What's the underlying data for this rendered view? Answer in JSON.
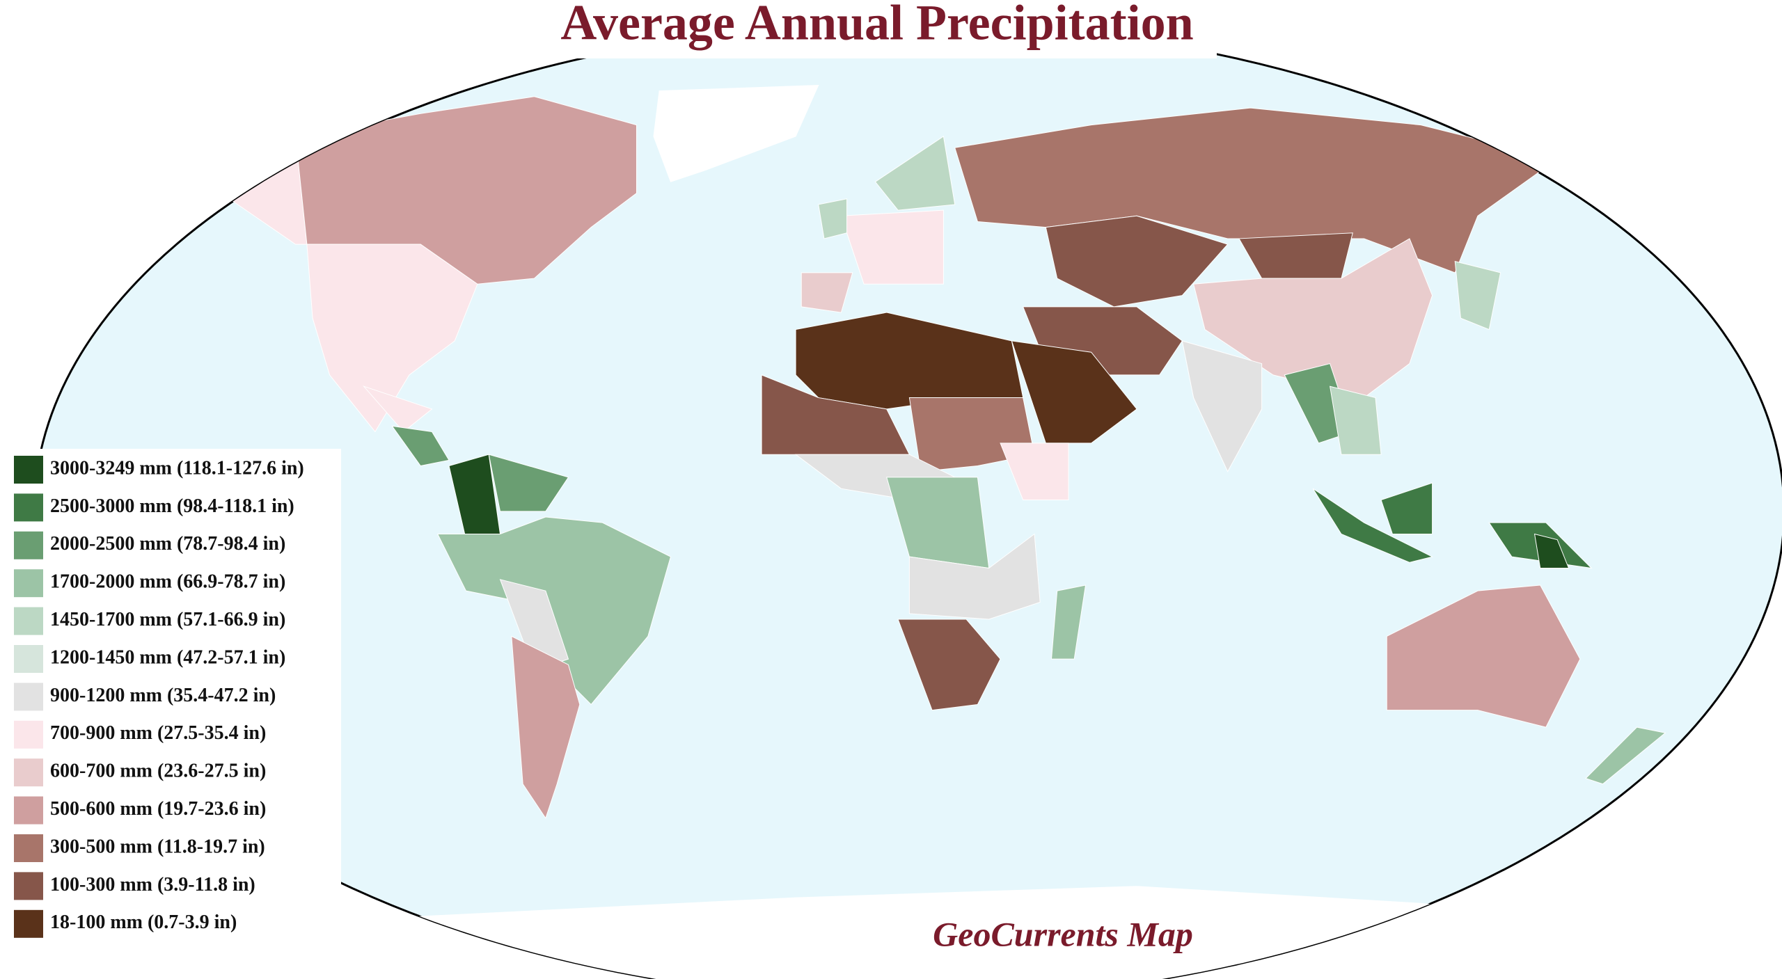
{
  "title": "Average Annual Precipitation",
  "legend": [
    {
      "label": "3000-3249 mm (118.1-127.6 in)",
      "color": "#1e4d1e"
    },
    {
      "label": "2500-3000 mm (98.4-118.1 in)",
      "color": "#3f7a45"
    },
    {
      "label": "2000-2500 mm (78.7-98.4 in)",
      "color": "#6a9e72"
    },
    {
      "label": "1700-2000 mm (66.9-78.7 in)",
      "color": "#9cc4a6"
    },
    {
      "label": "1450-1700 mm (57.1-66.9 in)",
      "color": "#bcd8c4"
    },
    {
      "label": "1200-1450 mm (47.2-57.1 in)",
      "color": "#d6e5dc"
    },
    {
      "label": "900-1200 mm (35.4-47.2 in)",
      "color": "#e2e2e2"
    },
    {
      "label": "700-900 mm (27.5-35.4 in)",
      "color": "#fbe6ea"
    },
    {
      "label": "600-700 mm (23.6-27.5 in)",
      "color": "#e9cccd"
    },
    {
      "label": "500-600 mm (19.7-23.6 in)",
      "color": "#cf9f9f"
    },
    {
      "label": "300-500 mm (11.8-19.7 in)",
      "color": "#a8756a"
    },
    {
      "label": "100-300 mm (3.9-11.8 in)",
      "color": "#86564a"
    },
    {
      "label": "18-100 mm (0.7-3.9 in)",
      "color": "#5a321a"
    }
  ],
  "credit": "GeoCurrents Map"
}
